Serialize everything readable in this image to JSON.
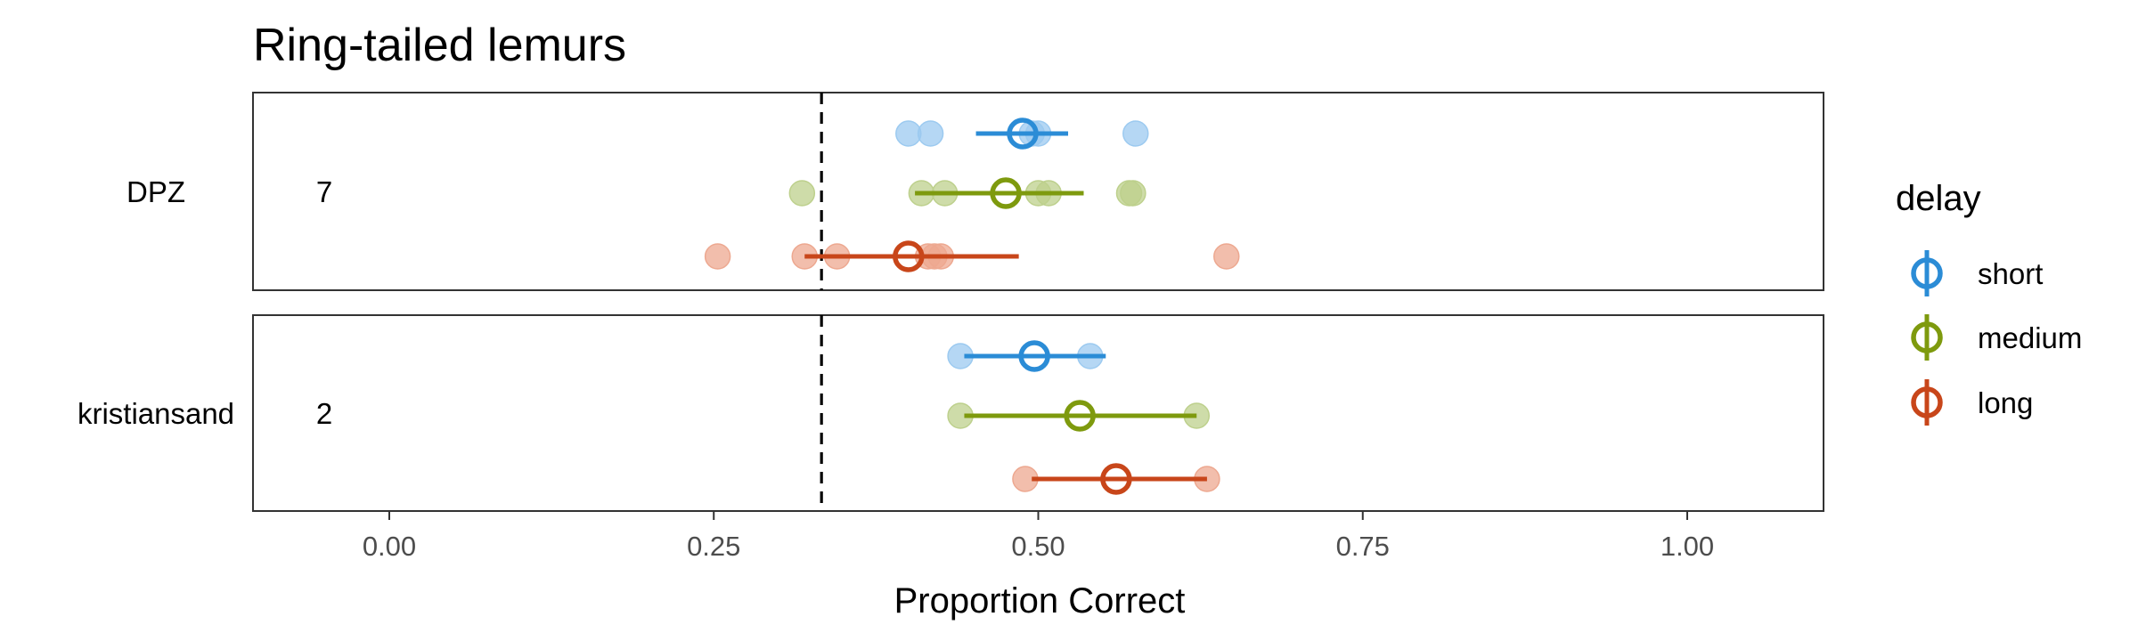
{
  "chart_data": {
    "type": "scatter",
    "title": "Ring-tailed lemurs",
    "xlabel": "Proportion Correct",
    "ylabel": "",
    "xlim": [
      -0.105,
      1.105
    ],
    "x_ticks": [
      0.0,
      0.25,
      0.5,
      0.75,
      1.0
    ],
    "x_tick_labels": [
      "0.00",
      "0.25",
      "0.50",
      "0.75",
      "1.00"
    ],
    "chance_line": 0.333,
    "grid": false,
    "legend": {
      "title": "delay",
      "placement": "right",
      "entries": [
        {
          "key": "short",
          "label": "short",
          "color": "#2b8cd6",
          "light": "#9ccaf0"
        },
        {
          "key": "medium",
          "label": "medium",
          "color": "#7e9a0e",
          "light": "#bdd08c"
        },
        {
          "key": "long",
          "label": "long",
          "color": "#c8461a",
          "light": "#eda890"
        }
      ]
    },
    "panels": [
      {
        "name": "DPZ",
        "n_label": "7",
        "series": [
          {
            "delay": "short",
            "points": [
              0.4,
              0.417,
              0.495,
              0.5,
              0.575
            ],
            "mean": 0.488,
            "ci": [
              0.452,
              0.523
            ]
          },
          {
            "delay": "medium",
            "points": [
              0.318,
              0.41,
              0.428,
              0.5,
              0.508,
              0.57,
              0.573
            ],
            "mean": 0.475,
            "ci": [
              0.405,
              0.535
            ]
          },
          {
            "delay": "long",
            "points": [
              0.253,
              0.32,
              0.345,
              0.415,
              0.42,
              0.425,
              0.645
            ],
            "mean": 0.4,
            "ci": [
              0.32,
              0.485
            ]
          }
        ]
      },
      {
        "name": "kristiansand",
        "n_label": "2",
        "series": [
          {
            "delay": "short",
            "points": [
              0.44,
              0.54
            ],
            "mean": 0.497,
            "ci": [
              0.443,
              0.552
            ]
          },
          {
            "delay": "medium",
            "points": [
              0.44,
              0.622
            ],
            "mean": 0.532,
            "ci": [
              0.443,
              0.622
            ]
          },
          {
            "delay": "long",
            "points": [
              0.49,
              0.63
            ],
            "mean": 0.56,
            "ci": [
              0.495,
              0.63
            ]
          }
        ]
      }
    ]
  }
}
